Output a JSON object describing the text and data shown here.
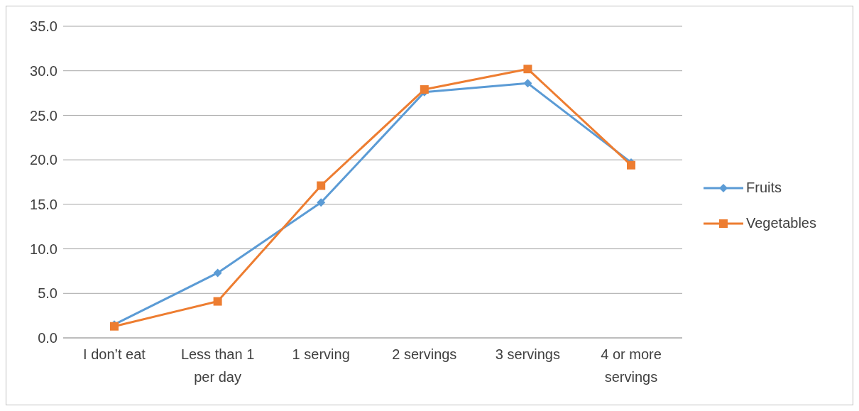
{
  "chart_data": {
    "type": "line",
    "categories": [
      "I don’t eat",
      "Less than 1 per day",
      "1 serving",
      "2 servings",
      "3 servings",
      "4 or more servings"
    ],
    "series": [
      {
        "name": "Fruits",
        "color": "#5b9bd5",
        "marker": "diamond",
        "values": [
          1.5,
          7.3,
          15.2,
          27.6,
          28.6,
          19.7
        ]
      },
      {
        "name": "Vegetables",
        "color": "#ed7d31",
        "marker": "square",
        "values": [
          1.3,
          4.1,
          17.1,
          27.9,
          30.2,
          19.4
        ]
      }
    ],
    "ylim": [
      0,
      35
    ],
    "yticks": [
      {
        "value": 0,
        "label": "0.0"
      },
      {
        "value": 5,
        "label": "5.0"
      },
      {
        "value": 10,
        "label": "10.0"
      },
      {
        "value": 15,
        "label": "15.0"
      },
      {
        "value": 20,
        "label": "20.0"
      },
      {
        "value": 25,
        "label": "25.0"
      },
      {
        "value": 30,
        "label": "30.0"
      },
      {
        "value": 35,
        "label": "35.0"
      }
    ],
    "grid": "y",
    "legend": "right",
    "line_style": "solid"
  }
}
